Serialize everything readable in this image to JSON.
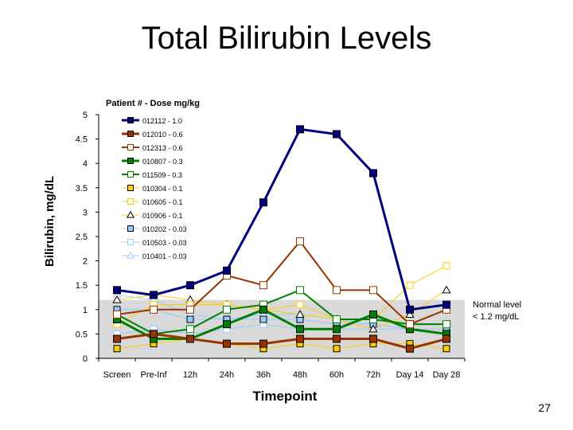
{
  "title": "Total Bilirubin Levels",
  "page_number": "27",
  "normal_note": [
    "Normal level",
    "< 1.2 mg/dL"
  ],
  "chart_data": {
    "type": "line",
    "ylabel": "Bilirubin, mg/dL",
    "xlabel": "Timepoint",
    "legend_title": "Patient # - Dose mg/kg",
    "legend_position": "top-left",
    "categories": [
      "Screen",
      "Pre-Inf",
      "12h",
      "24h",
      "36h",
      "48h",
      "60h",
      "72h",
      "Day 14",
      "Day 28"
    ],
    "ylim": [
      0,
      5
    ],
    "yticks": [
      "0",
      "0.5",
      "1",
      "1.5",
      "2",
      "2.5",
      "3",
      "3.5",
      "4",
      "4.5",
      "5"
    ],
    "normal_band": [
      0,
      1.2
    ],
    "grid": false,
    "series": [
      {
        "name": "012112 - 1.0",
        "color": "#000080",
        "marker": "square",
        "filled": true,
        "width": 3,
        "values": [
          1.4,
          1.3,
          1.5,
          1.8,
          3.2,
          4.7,
          4.6,
          3.8,
          1.0,
          1.1
        ]
      },
      {
        "name": "012010 - 0.6",
        "color": "#993300",
        "marker": "square",
        "filled": true,
        "width": 3,
        "values": [
          0.4,
          0.5,
          0.4,
          0.3,
          0.3,
          0.4,
          0.4,
          0.4,
          0.2,
          0.4
        ]
      },
      {
        "name": "012313 - 0.6",
        "color": "#993300",
        "marker": "square",
        "filled": false,
        "width": 2,
        "values": [
          0.9,
          1.0,
          1.0,
          1.7,
          1.5,
          2.4,
          1.4,
          1.4,
          0.7,
          1.0
        ]
      },
      {
        "name": "010807 - 0.3",
        "color": "#008000",
        "marker": "square",
        "filled": true,
        "width": 3,
        "values": [
          0.8,
          0.4,
          0.4,
          0.7,
          1.0,
          0.6,
          0.6,
          0.9,
          0.6,
          0.5
        ]
      },
      {
        "name": "011509 - 0.3",
        "color": "#008000",
        "marker": "square",
        "filled": false,
        "width": 2,
        "values": [
          0.9,
          0.5,
          0.6,
          1.0,
          1.1,
          1.4,
          0.8,
          0.8,
          0.7,
          0.7
        ]
      },
      {
        "name": "010304 - 0.1",
        "color": "#FFCC00",
        "marker": "square",
        "filled": true,
        "width": 1,
        "values": [
          0.2,
          0.3,
          0.4,
          0.3,
          0.2,
          0.3,
          0.2,
          0.3,
          0.3,
          0.2
        ]
      },
      {
        "name": "010605 - 0.1",
        "color": "#FFCC00",
        "marker": "square",
        "filled": false,
        "width": 1,
        "values": [
          0.7,
          1.1,
          1.1,
          1.1,
          1.0,
          1.1,
          0.8,
          0.8,
          1.5,
          1.9
        ]
      },
      {
        "name": "010906 - 0.1",
        "color": "#FFCC00",
        "marker": "triangle",
        "filled": false,
        "width": 1,
        "values": [
          1.2,
          1.3,
          1.2,
          1.1,
          1.0,
          0.9,
          0.8,
          0.6,
          0.9,
          1.4
        ]
      },
      {
        "name": "010202 - 0.03",
        "color": "#99CCFF",
        "marker": "square",
        "filled": true,
        "width": 1,
        "values": [
          1.0,
          1.0,
          0.8,
          0.8,
          0.8,
          0.8,
          0.7,
          0.7,
          0.6,
          0.6
        ]
      },
      {
        "name": "010503 - 0.03",
        "color": "#99CCFF",
        "marker": "square",
        "filled": false,
        "width": 1,
        "values": [
          0.5,
          0.6,
          0.5,
          0.6,
          0.7,
          0.6,
          0.6,
          0.6,
          0.6,
          0.5
        ]
      },
      {
        "name": "010401 - 0.03",
        "color": "#99CCFF",
        "marker": "triangle",
        "filled": false,
        "width": 1,
        "values": [
          1.3,
          1.2,
          0.9,
          0.8,
          0.9,
          0.9,
          0.8,
          0.7,
          0.6,
          0.5
        ]
      }
    ]
  }
}
